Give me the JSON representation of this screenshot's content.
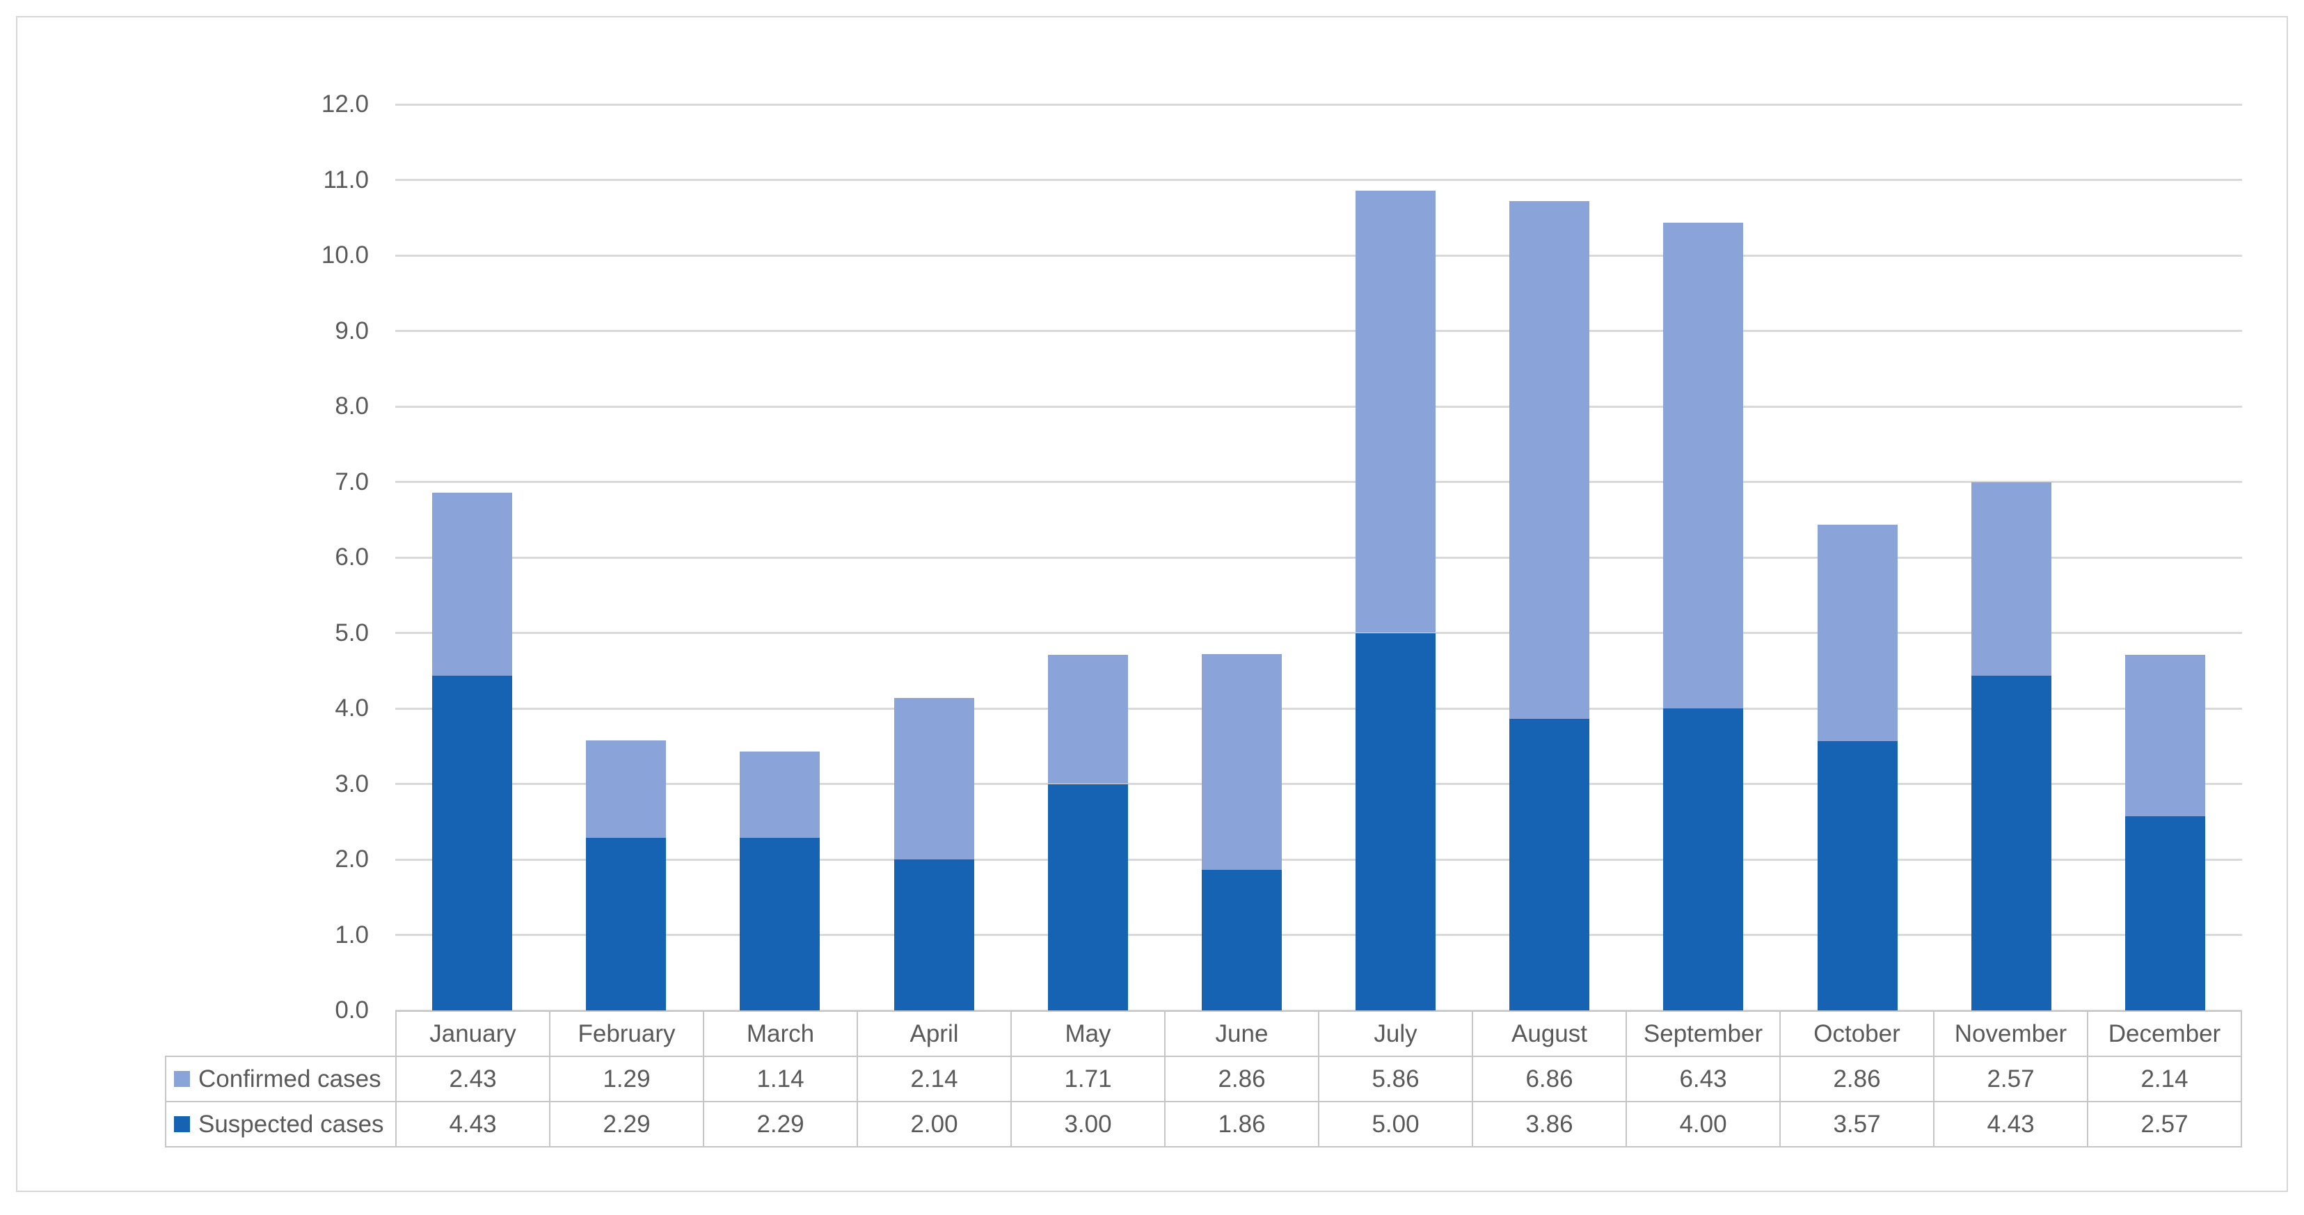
{
  "chart_data": {
    "type": "bar",
    "stacked": true,
    "title": "",
    "xlabel": "",
    "ylabel": "",
    "categories": [
      "January",
      "February",
      "March",
      "April",
      "May",
      "June",
      "July",
      "August",
      "September",
      "October",
      "November",
      "December"
    ],
    "series": [
      {
        "name": "Confirmed cases",
        "color": "#8AA3D9",
        "values": [
          2.43,
          1.29,
          1.14,
          2.14,
          1.71,
          2.86,
          5.86,
          6.86,
          6.43,
          2.86,
          2.57,
          2.14
        ]
      },
      {
        "name": "Suspected cases",
        "color": "#1663B3",
        "values": [
          4.43,
          2.29,
          2.29,
          2.0,
          3.0,
          1.86,
          5.0,
          3.86,
          4.0,
          3.57,
          4.43,
          2.57
        ]
      }
    ],
    "stack_order_bottom_to_top": [
      "Suspected cases",
      "Confirmed cases"
    ],
    "ylim": [
      0,
      12
    ],
    "ytick_step": 1.0,
    "ytick_labels": [
      "0.0",
      "1.0",
      "2.0",
      "3.0",
      "4.0",
      "5.0",
      "6.0",
      "7.0",
      "8.0",
      "9.0",
      "10.0",
      "11.0",
      "12.0"
    ],
    "grid": true,
    "legend_position": "data-table-row-labels"
  },
  "table": {
    "column_headers": [
      "January",
      "February",
      "March",
      "April",
      "May",
      "June",
      "July",
      "August",
      "September",
      "October",
      "November",
      "December"
    ],
    "rows": [
      {
        "label": "Confirmed cases",
        "swatch_color": "#8AA3D9",
        "values": [
          "2.43",
          "1.29",
          "1.14",
          "2.14",
          "1.71",
          "2.86",
          "5.86",
          "6.86",
          "6.43",
          "2.86",
          "2.57",
          "2.14"
        ]
      },
      {
        "label": "Suspected cases",
        "swatch_color": "#1663B3",
        "values": [
          "4.43",
          "2.29",
          "2.29",
          "2.00",
          "3.00",
          "1.86",
          "5.00",
          "3.86",
          "4.00",
          "3.57",
          "4.43",
          "2.57"
        ]
      }
    ]
  },
  "style": {
    "background": "#FFFFFF",
    "frame_border_color": "#D7D7D7",
    "grid_color": "#D9D9D9",
    "table_border_color": "#C6C6C6",
    "text_color": "#595959",
    "confirmed_color": "#8AA3D9",
    "suspected_color": "#1663B3"
  }
}
